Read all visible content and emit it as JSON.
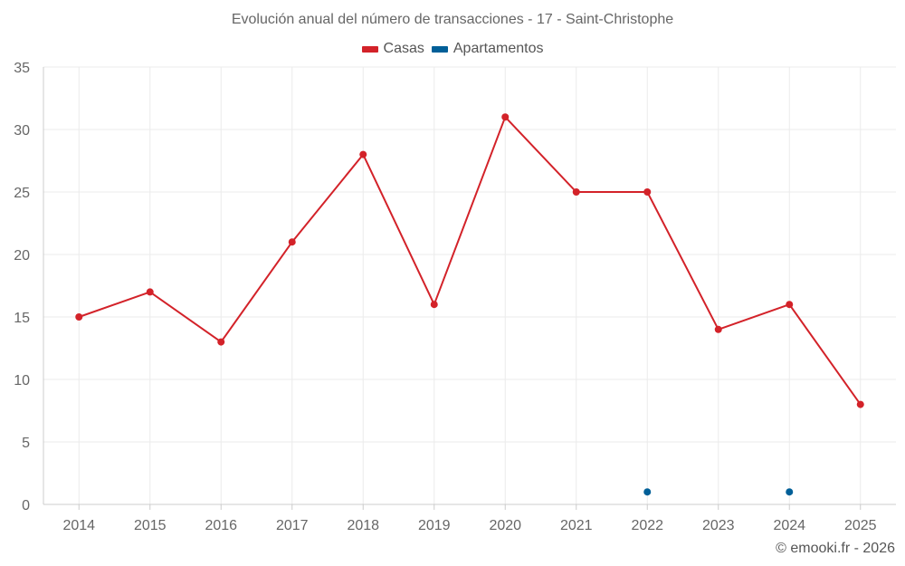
{
  "chart_data": {
    "type": "line",
    "title": "Evolución anual del número de transacciones - 17 - Saint-Christophe",
    "categories": [
      "2014",
      "2015",
      "2016",
      "2017",
      "2018",
      "2019",
      "2020",
      "2021",
      "2022",
      "2023",
      "2024",
      "2025"
    ],
    "series": [
      {
        "name": "Casas",
        "color": "#d32229",
        "values": [
          15,
          17,
          13,
          21,
          28,
          16,
          31,
          25,
          25,
          14,
          16,
          8
        ]
      },
      {
        "name": "Apartamentos",
        "color": "#005f98",
        "values": [
          null,
          null,
          null,
          null,
          null,
          null,
          null,
          null,
          1,
          null,
          1,
          null
        ]
      }
    ],
    "ylim": [
      0,
      35
    ],
    "yticks": [
      0,
      5,
      10,
      15,
      20,
      25,
      30,
      35
    ],
    "grid": true,
    "legend_position": "top-center"
  },
  "credit": "© emooki.fr - 2026"
}
